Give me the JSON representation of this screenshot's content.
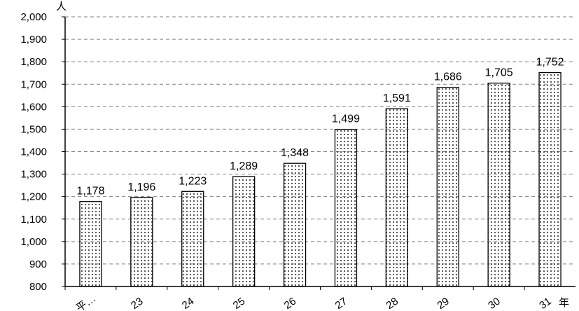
{
  "chart_data": {
    "type": "bar",
    "title": "",
    "ylabel": "人",
    "xlabel": "年",
    "categories": [
      "平…",
      "23",
      "24",
      "25",
      "26",
      "27",
      "28",
      "29",
      "30",
      "31"
    ],
    "values": [
      1178,
      1196,
      1223,
      1289,
      1348,
      1499,
      1591,
      1686,
      1705,
      1752
    ],
    "value_labels": [
      "1,178",
      "1,196",
      "1,223",
      "1,289",
      "1,348",
      "1,499",
      "1,591",
      "1,686",
      "1,705",
      "1,752"
    ],
    "ylim": [
      800,
      2000
    ],
    "yticks": [
      800,
      900,
      1000,
      1100,
      1200,
      1300,
      1400,
      1500,
      1600,
      1700,
      1800,
      1900,
      2000
    ],
    "ytick_labels": [
      "800",
      "900",
      "1,000",
      "1,100",
      "1,200",
      "1,300",
      "1,400",
      "1,500",
      "1,600",
      "1,700",
      "1,800",
      "1,900",
      "2,000"
    ],
    "grid": true,
    "bar_fill": "dotted",
    "colors": {
      "bar_stroke": "#000000",
      "dot": "#000000",
      "grid": "#808080"
    }
  }
}
